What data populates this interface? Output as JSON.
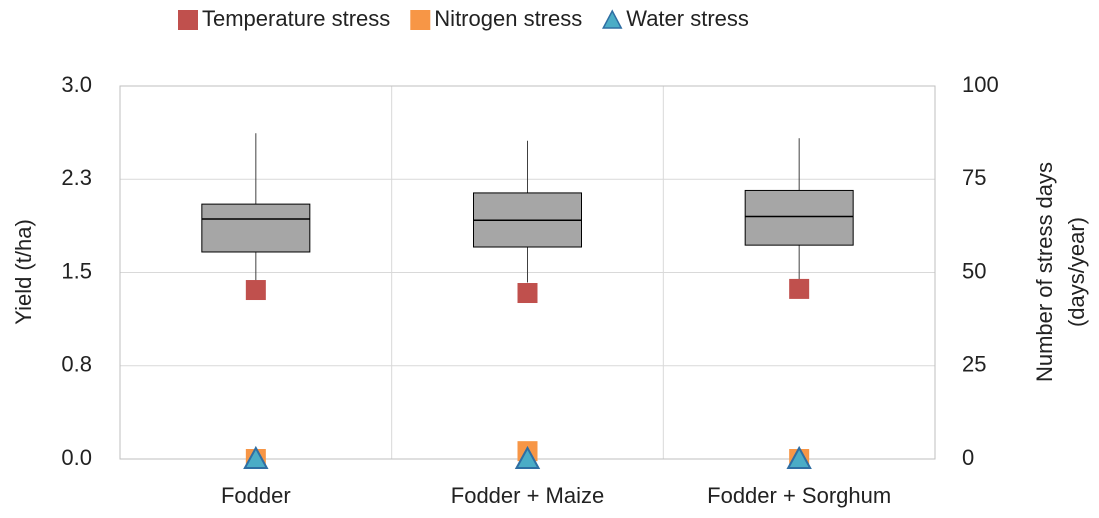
{
  "chart_data": {
    "type": "box",
    "categories": [
      "Fodder",
      "Fodder + Maize",
      "Fodder + Sorghum"
    ],
    "box": {
      "color": "#a6a6a6",
      "whisker_low": [
        1.42,
        1.42,
        1.44
      ],
      "q1": [
        1.665,
        1.705,
        1.72
      ],
      "median": [
        1.93,
        1.92,
        1.95
      ],
      "q3": [
        2.05,
        2.14,
        2.16
      ],
      "whisker_high": [
        2.62,
        2.56,
        2.58
      ]
    },
    "series": [
      {
        "name": "Temperature stress",
        "color": "#c0504d",
        "marker": "square",
        "axis": "y2",
        "values": [
          45.3,
          44.5,
          45.6
        ]
      },
      {
        "name": "Nitrogen stress",
        "color": "#f79646",
        "marker": "square",
        "axis": "y2",
        "values": [
          0,
          2.1,
          0
        ]
      },
      {
        "name": "Water stress",
        "color": "#4bacc6",
        "marker": "triangle",
        "axis": "y2",
        "values": [
          0,
          0,
          0
        ]
      }
    ],
    "ylabel": "Yield (t/ha)",
    "y2label": [
      "Number of stress days",
      "(days/year)"
    ],
    "ylim": [
      0,
      3
    ],
    "yticks": [
      {
        "value": 0,
        "label": "0.0"
      },
      {
        "value": 0.75,
        "label": "0.8"
      },
      1.5,
      {
        "value": 2.25,
        "label": "2.3"
      },
      {
        "value": 3,
        "label": "3.0"
      }
    ],
    "y2lim": [
      0,
      100
    ],
    "y2ticks": [
      0,
      25,
      50,
      75,
      100
    ],
    "grid": true,
    "legend": "top"
  }
}
